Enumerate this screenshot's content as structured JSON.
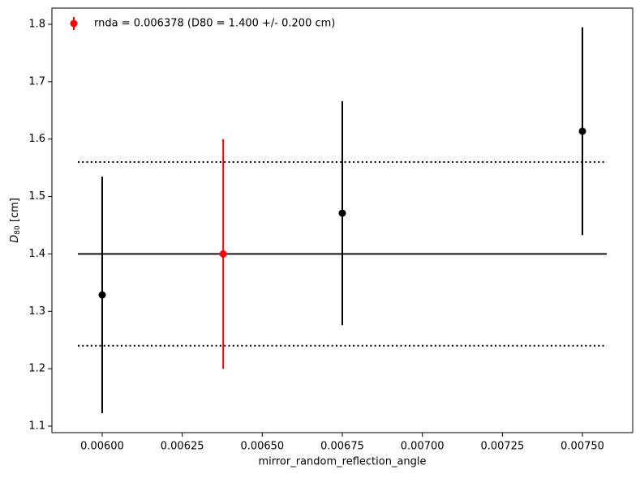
{
  "chart_data": {
    "type": "errorbar",
    "xlabel": "mirror_random_reflection_angle",
    "ylabel_parts": [
      "D",
      "80",
      " [cm]"
    ],
    "xlim": [
      0.005843,
      0.007657
    ],
    "ylim": [
      1.0887,
      1.8282
    ],
    "xticks": [
      {
        "value": 0.006,
        "label": "0.00600"
      },
      {
        "value": 0.00625,
        "label": "0.00625"
      },
      {
        "value": 0.0065,
        "label": "0.00650"
      },
      {
        "value": 0.00675,
        "label": "0.00675"
      },
      {
        "value": 0.007,
        "label": "0.00700"
      },
      {
        "value": 0.00725,
        "label": "0.00725"
      },
      {
        "value": 0.0075,
        "label": "0.00750"
      }
    ],
    "yticks": [
      1.1,
      1.2,
      1.3,
      1.4,
      1.5,
      1.6,
      1.7,
      1.8
    ],
    "series": [
      {
        "color": "#000000",
        "x": [
          0.006,
          0.00675,
          0.0075
        ],
        "values": [
          1.3286,
          1.471,
          1.6137
        ],
        "errors": [
          0.206,
          0.195,
          0.181
        ]
      },
      {
        "name": "rnda = 0.006378 (D80 = 1.400 +/- 0.200 cm)",
        "color": "#ff0000",
        "x": [
          0.006378
        ],
        "values": [
          1.4
        ],
        "errors": [
          0.2
        ]
      }
    ],
    "hlines": [
      {
        "y": 1.4,
        "style": "solid"
      },
      {
        "y": 1.56,
        "style": "dotted"
      },
      {
        "y": 1.24,
        "style": "dotted"
      }
    ],
    "hline_xrange": [
      0.005924,
      0.007576
    ],
    "legend": "upper left"
  }
}
